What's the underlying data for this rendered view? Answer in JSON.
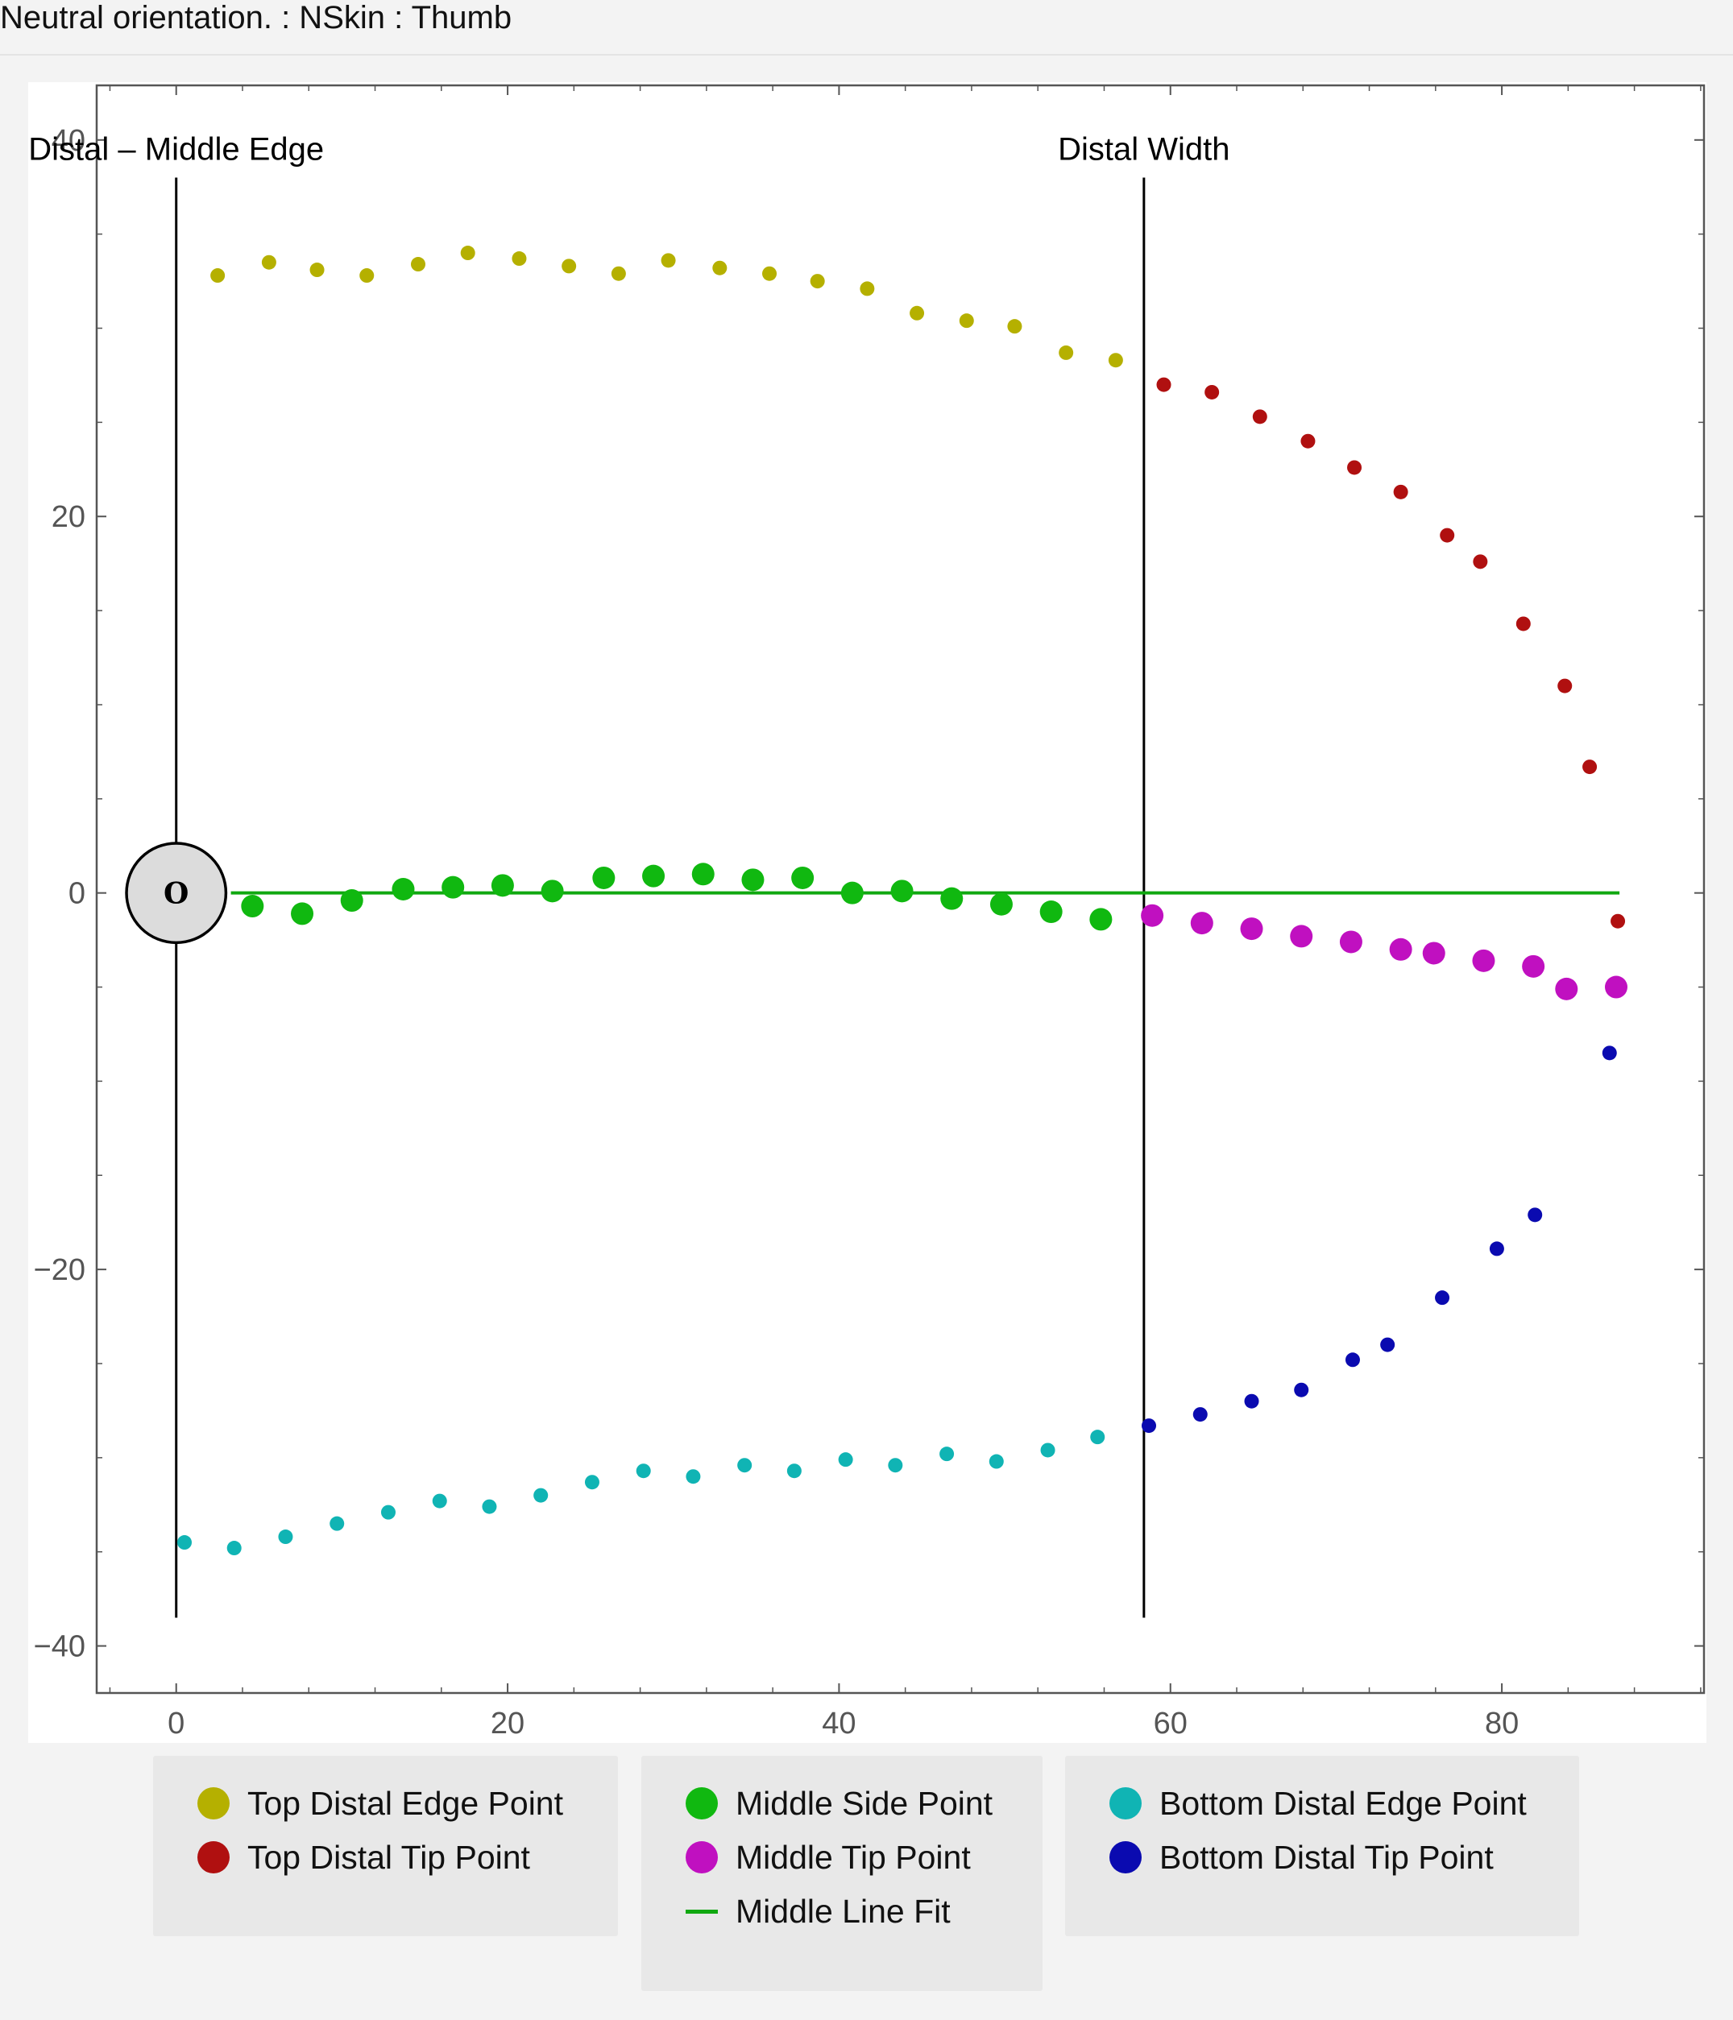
{
  "window": {
    "title": "Neutral orientation. : NSkin : Thumb"
  },
  "colors": {
    "top_edge": "#b5b000",
    "top_tip": "#b01010",
    "middle_side": "#10b810",
    "middle_tip": "#c010c0",
    "bottom_edge": "#10b4b4",
    "bottom_tip": "#0a0ab0",
    "fit_line": "#10a810",
    "frame": "#555555",
    "tick_label": "#555555"
  },
  "legend": {
    "groups": [
      {
        "items": [
          {
            "label": "Top Distal Edge Point",
            "color": "#b5b000",
            "marker": "dot"
          },
          {
            "label": "Top Distal Tip Point",
            "color": "#b01010",
            "marker": "dot"
          }
        ]
      },
      {
        "items": [
          {
            "label": "Middle Side Point",
            "color": "#10b810",
            "marker": "dot"
          },
          {
            "label": "Middle Tip Point",
            "color": "#c010c0",
            "marker": "dot"
          },
          {
            "label": "Middle Line Fit",
            "color": "#10a810",
            "marker": "line"
          }
        ]
      },
      {
        "items": [
          {
            "label": "Bottom Distal Edge Point",
            "color": "#10b4b4",
            "marker": "dot"
          },
          {
            "label": "Bottom Distal Tip Point",
            "color": "#0a0ab0",
            "marker": "dot"
          }
        ]
      }
    ]
  },
  "chart_data": {
    "type": "scatter",
    "title": "",
    "xlabel": "",
    "ylabel": "",
    "xlim": [
      -4.8,
      92.2
    ],
    "ylim": [
      -42.5,
      42.9
    ],
    "xticks": [
      0,
      20,
      40,
      60,
      80
    ],
    "yticks": [
      -40,
      -20,
      0,
      20,
      40
    ],
    "xtick_labels": [
      "0",
      "20",
      "40",
      "60",
      "80"
    ],
    "ytick_labels": [
      "−40",
      "−20",
      "0",
      "20",
      "40"
    ],
    "grid": false,
    "legend_position": "bottom",
    "origin_marker": {
      "x": 0,
      "y": 0,
      "radius": 3,
      "label": "O"
    },
    "vertical_lines": [
      {
        "x": 0,
        "y_range": [
          -38.5,
          38
        ],
        "label": "Distal – Middle Edge"
      },
      {
        "x": 58.4,
        "y_range": [
          -38.5,
          38
        ],
        "label": "Distal Width"
      }
    ],
    "fit_line": {
      "name": "Middle Line Fit",
      "x": [
        3.3,
        87.1
      ],
      "y": [
        0,
        0
      ]
    },
    "series": [
      {
        "name": "Top Distal Edge Point",
        "marker_size": "small",
        "points": [
          [
            2.5,
            32.8
          ],
          [
            5.6,
            33.5
          ],
          [
            8.5,
            33.1
          ],
          [
            11.5,
            32.8
          ],
          [
            14.6,
            33.4
          ],
          [
            17.6,
            34.0
          ],
          [
            20.7,
            33.7
          ],
          [
            23.7,
            33.3
          ],
          [
            26.7,
            32.9
          ],
          [
            29.7,
            33.6
          ],
          [
            32.8,
            33.2
          ],
          [
            35.8,
            32.9
          ],
          [
            38.7,
            32.5
          ],
          [
            41.7,
            32.1
          ],
          [
            44.7,
            30.8
          ],
          [
            47.7,
            30.4
          ],
          [
            50.6,
            30.1
          ],
          [
            53.7,
            28.7
          ],
          [
            56.7,
            28.3
          ]
        ]
      },
      {
        "name": "Top Distal Tip Point",
        "marker_size": "small",
        "points": [
          [
            59.6,
            27.0
          ],
          [
            62.5,
            26.6
          ],
          [
            65.4,
            25.3
          ],
          [
            68.3,
            24.0
          ],
          [
            71.1,
            22.6
          ],
          [
            73.9,
            21.3
          ],
          [
            76.7,
            19.0
          ],
          [
            78.7,
            17.6
          ],
          [
            81.3,
            14.3
          ],
          [
            83.8,
            11.0
          ],
          [
            85.3,
            6.7
          ],
          [
            87.0,
            -1.5
          ]
        ]
      },
      {
        "name": "Middle Side Point",
        "marker_size": "large",
        "points": [
          [
            4.6,
            -0.7
          ],
          [
            7.6,
            -1.1
          ],
          [
            10.6,
            -0.4
          ],
          [
            13.7,
            0.2
          ],
          [
            16.7,
            0.3
          ],
          [
            19.7,
            0.4
          ],
          [
            22.7,
            0.1
          ],
          [
            25.8,
            0.8
          ],
          [
            28.8,
            0.9
          ],
          [
            31.8,
            1.0
          ],
          [
            34.8,
            0.7
          ],
          [
            37.8,
            0.8
          ],
          [
            40.8,
            0.0
          ],
          [
            43.8,
            0.1
          ],
          [
            46.8,
            -0.3
          ],
          [
            49.8,
            -0.6
          ],
          [
            52.8,
            -1.0
          ],
          [
            55.8,
            -1.4
          ]
        ]
      },
      {
        "name": "Middle Tip Point",
        "marker_size": "large",
        "points": [
          [
            58.9,
            -1.2
          ],
          [
            61.9,
            -1.6
          ],
          [
            64.9,
            -1.9
          ],
          [
            67.9,
            -2.3
          ],
          [
            70.9,
            -2.6
          ],
          [
            73.9,
            -3.0
          ],
          [
            75.9,
            -3.2
          ],
          [
            78.9,
            -3.6
          ],
          [
            81.9,
            -3.9
          ],
          [
            83.9,
            -5.1
          ],
          [
            86.9,
            -5.0
          ]
        ]
      },
      {
        "name": "Bottom Distal Edge Point",
        "marker_size": "small",
        "points": [
          [
            0.5,
            -34.5
          ],
          [
            3.5,
            -34.8
          ],
          [
            6.6,
            -34.2
          ],
          [
            9.7,
            -33.5
          ],
          [
            12.8,
            -32.9
          ],
          [
            15.9,
            -32.3
          ],
          [
            18.9,
            -32.6
          ],
          [
            22.0,
            -32.0
          ],
          [
            25.1,
            -31.3
          ],
          [
            28.2,
            -30.7
          ],
          [
            31.2,
            -31.0
          ],
          [
            34.3,
            -30.4
          ],
          [
            37.3,
            -30.7
          ],
          [
            40.4,
            -30.1
          ],
          [
            43.4,
            -30.4
          ],
          [
            46.5,
            -29.8
          ],
          [
            49.5,
            -30.2
          ],
          [
            52.6,
            -29.6
          ],
          [
            55.6,
            -28.9
          ]
        ]
      },
      {
        "name": "Bottom Distal Tip Point",
        "marker_size": "small",
        "points": [
          [
            58.7,
            -28.3
          ],
          [
            61.8,
            -27.7
          ],
          [
            64.9,
            -27.0
          ],
          [
            67.9,
            -26.4
          ],
          [
            71.0,
            -24.8
          ],
          [
            73.1,
            -24.0
          ],
          [
            76.4,
            -21.5
          ],
          [
            79.7,
            -18.9
          ],
          [
            82.0,
            -17.1
          ],
          [
            86.5,
            -8.5
          ]
        ]
      }
    ]
  }
}
